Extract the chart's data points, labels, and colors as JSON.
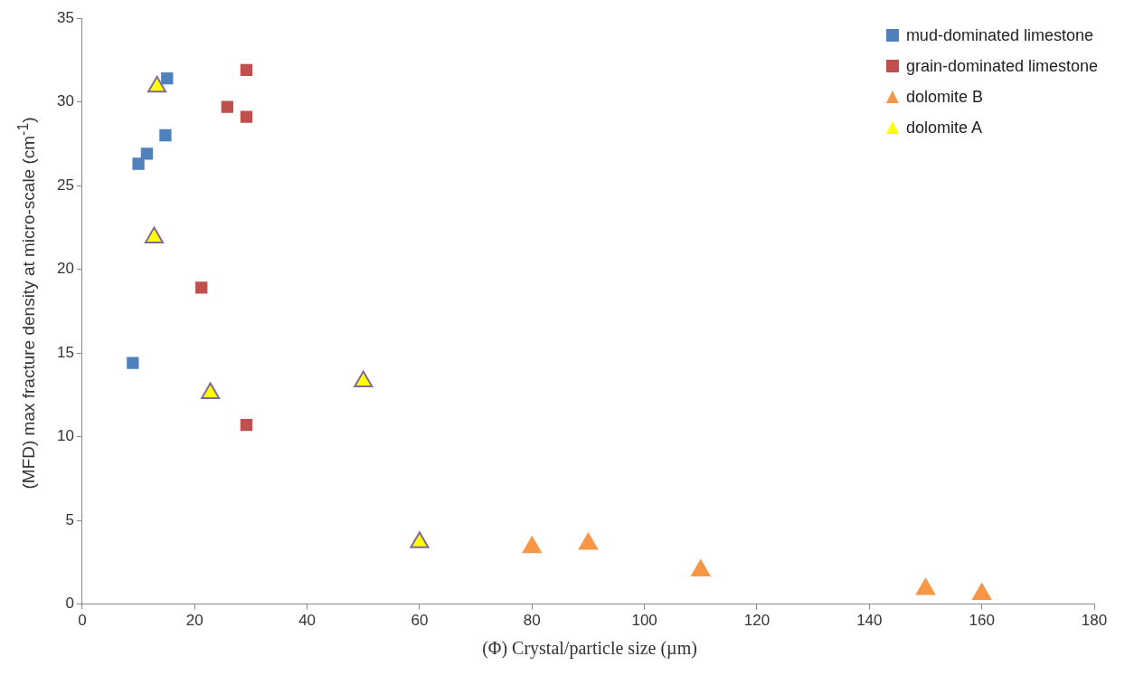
{
  "chart_data": {
    "type": "scatter",
    "xlabel": "(Φ) Crystal/particle size (µm)",
    "ylabel": "(MFD) max fracture density at micro-scale (cm$^{-1}$)",
    "xlim": [
      0,
      180
    ],
    "xticks": [
      0,
      20,
      40,
      60,
      80,
      100,
      120,
      140,
      160,
      180
    ],
    "ylim": [
      0,
      35
    ],
    "yticks": [
      0,
      5,
      10,
      15,
      20,
      25,
      30,
      35
    ],
    "grid": false,
    "legend": "top right",
    "series": [
      {
        "name": "mud-dominated limestone",
        "color": "#4f81bd",
        "marker": "square",
        "x": [
          9.0,
          10.0,
          11.5,
          14.8,
          15.1
        ],
        "values": [
          14.4,
          26.3,
          26.9,
          28.0,
          31.4
        ]
      },
      {
        "name": "grain-dominated limestone",
        "color": "#c0504d",
        "marker": "square",
        "x": [
          29.2,
          25.8,
          29.2,
          21.2,
          29.2
        ],
        "values": [
          31.9,
          29.7,
          29.1,
          18.9,
          10.7
        ]
      },
      {
        "name": "dolomite B",
        "color": "#f79646",
        "marker": "triangle",
        "x": [
          80,
          90,
          110,
          150,
          160
        ],
        "values": [
          3.4,
          3.6,
          2.0,
          0.9,
          0.6
        ]
      },
      {
        "name": "dolomite A",
        "color": "#ffff00",
        "marker": "triangle",
        "x": [
          13.3,
          12.8,
          22.8,
          50,
          60
        ],
        "values": [
          30.9,
          21.9,
          12.6,
          13.3,
          3.7
        ]
      }
    ]
  }
}
